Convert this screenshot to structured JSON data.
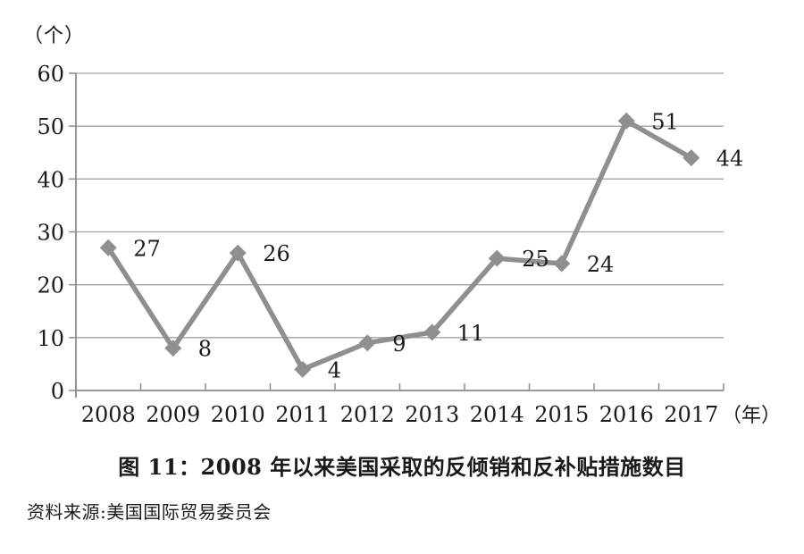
{
  "chart_data": {
    "type": "line",
    "title": "图 11：2008 年以来美国采取的反倾销和反补贴措施数目",
    "source": "资料来源:美国国际贸易委员会",
    "y_unit_label": "（个）",
    "x_unit_label": "（年）",
    "categories": [
      "2008",
      "2009",
      "2010",
      "2011",
      "2012",
      "2013",
      "2014",
      "2015",
      "2016",
      "2017"
    ],
    "values": [
      27,
      8,
      26,
      4,
      9,
      11,
      25,
      24,
      51,
      44
    ],
    "ylim": [
      0,
      60
    ],
    "yticks": [
      0,
      10,
      20,
      30,
      40,
      50,
      60
    ],
    "grid": "horizontal",
    "legend": "none",
    "marker": "diamond",
    "colors": {
      "line": "#8f8f8f",
      "marker": "#8f8f8f",
      "gridline": "#a3a3a3",
      "axis": "#8c8c8c",
      "text": "#1a1a1a"
    }
  }
}
